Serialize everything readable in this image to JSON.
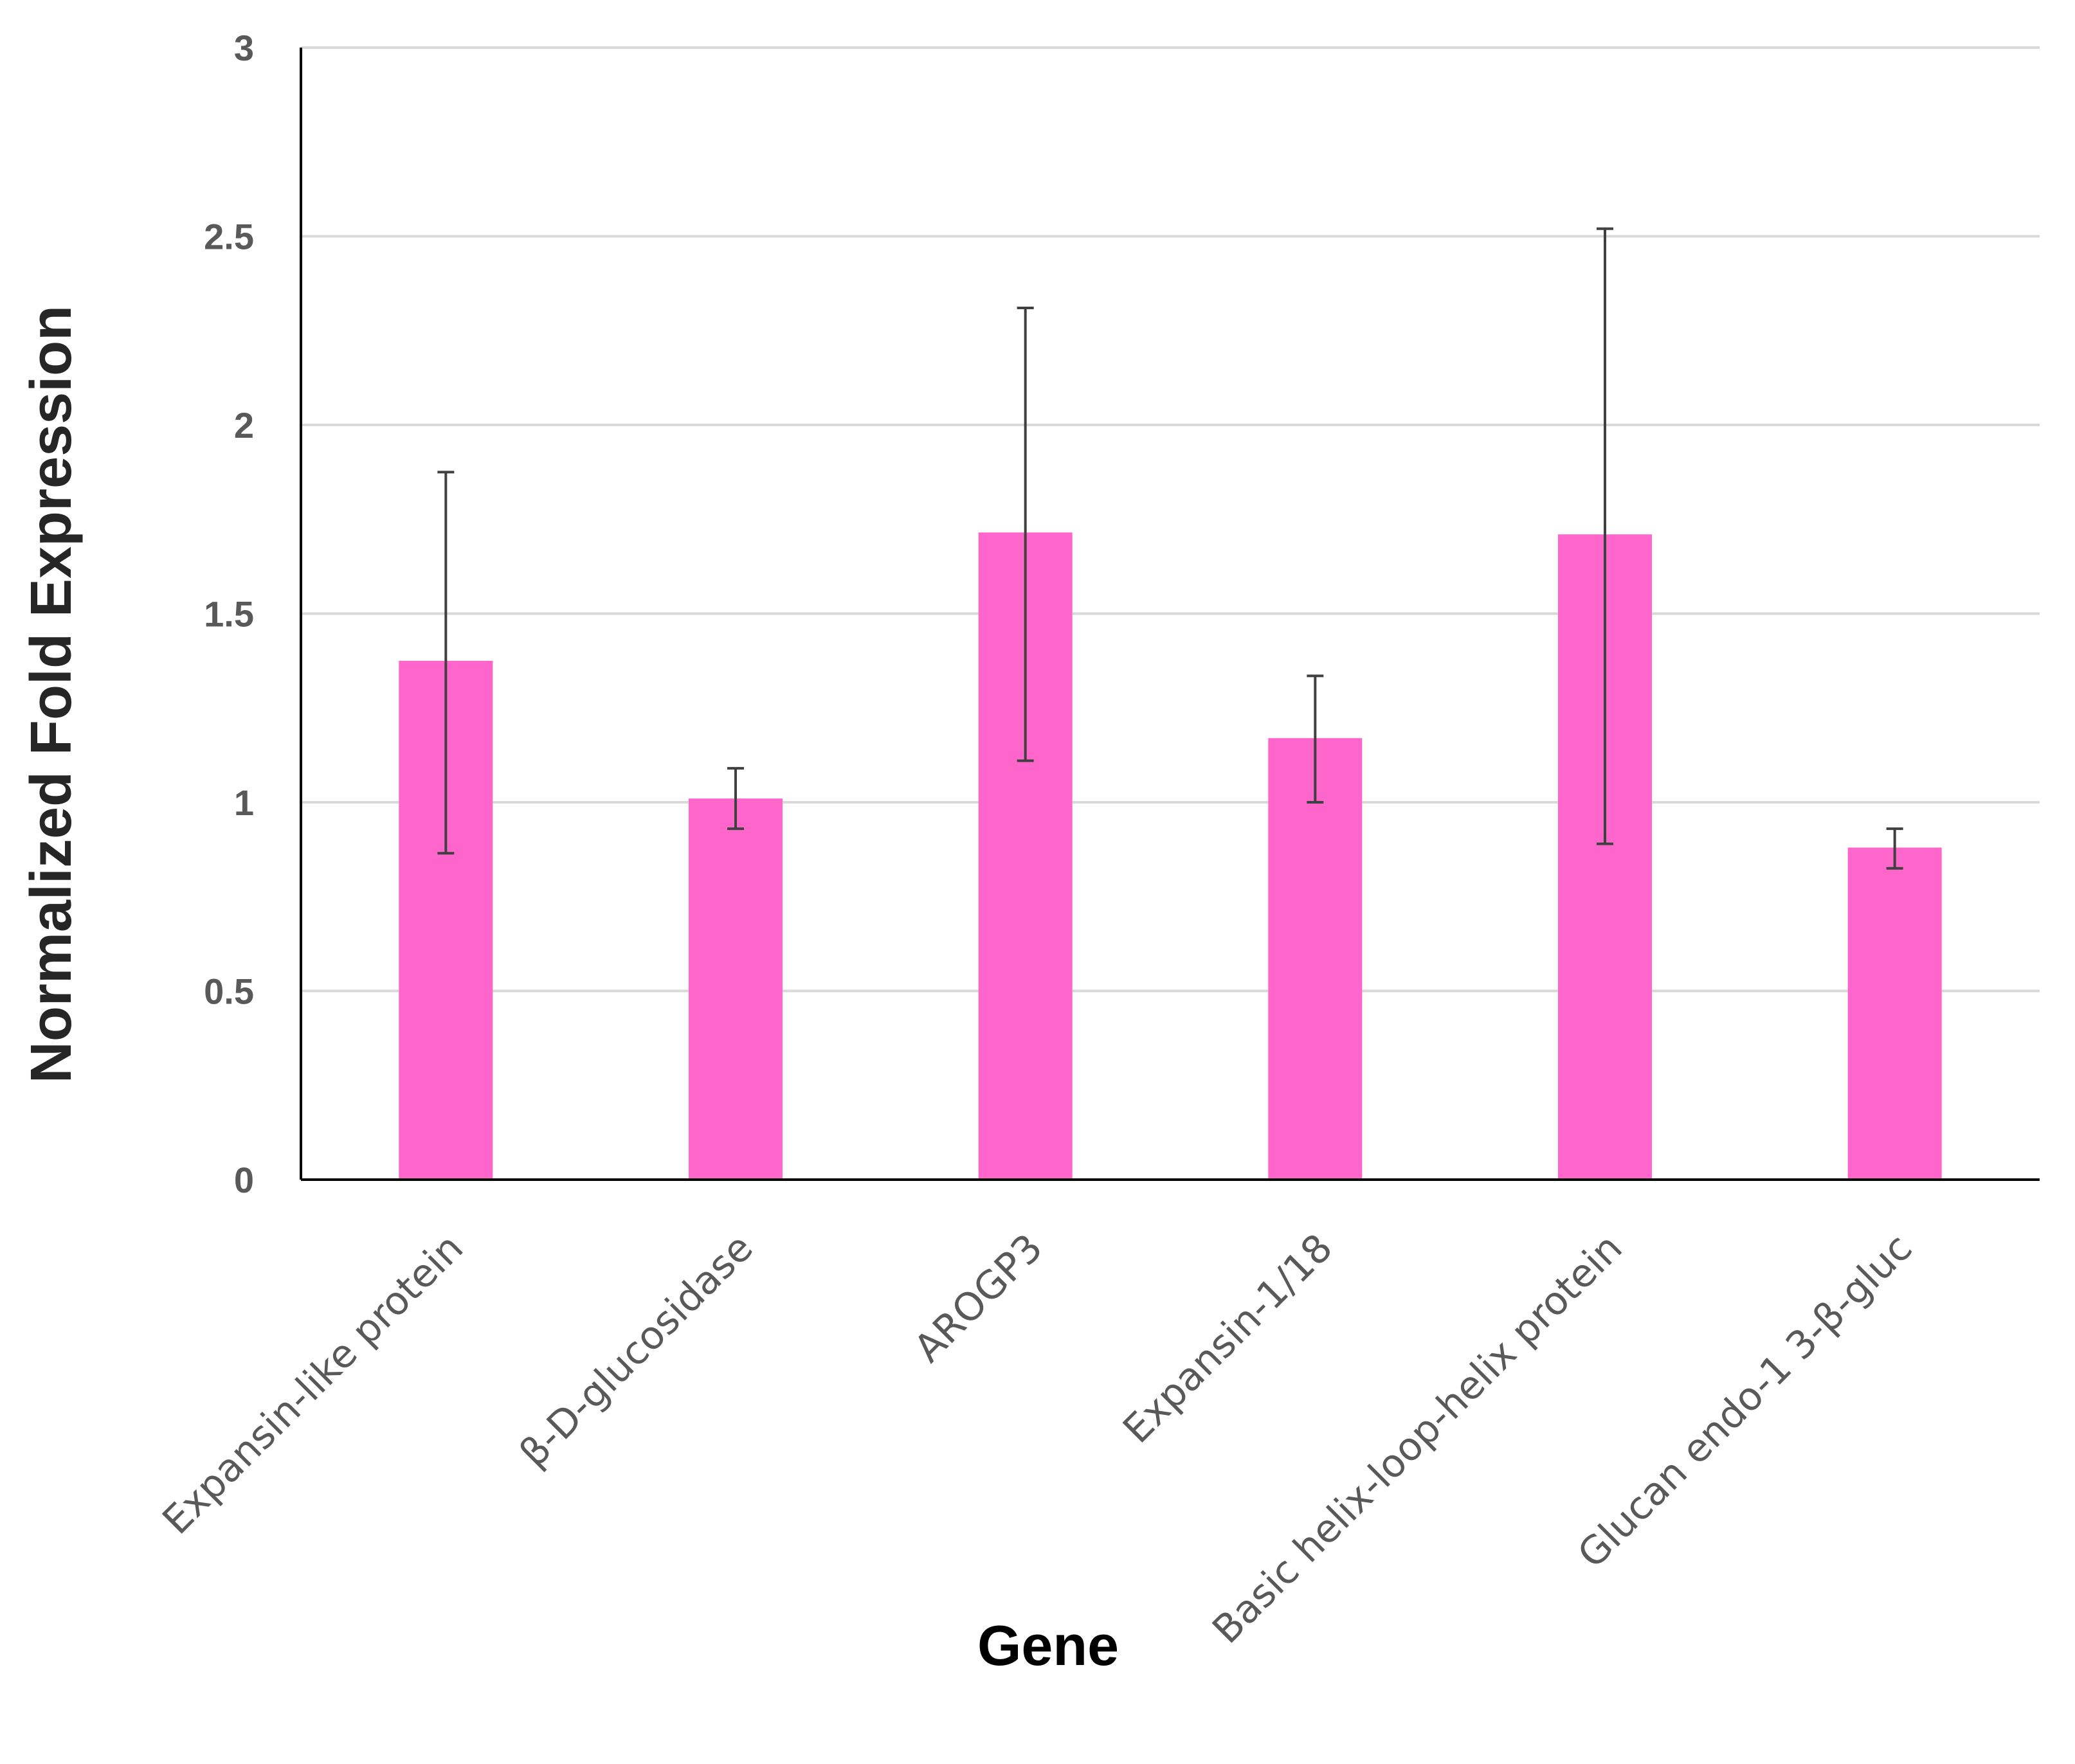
{
  "chart_data": {
    "type": "bar",
    "title": "",
    "xlabel": "Gene",
    "ylabel": "Normalized Fold Expression",
    "ylim": [
      0,
      3
    ],
    "yticks": [
      "0",
      "0.5",
      "1",
      "1.5",
      "2",
      "2.5",
      "3"
    ],
    "grid": true,
    "categories": [
      "Expansin-like protein",
      "β-D-glucosidase",
      "AROGP3",
      "Expansin-1/18",
      "Basic helix-loop-helix protein",
      "Glucan endo-1 3-β-gluc"
    ],
    "values": [
      1.375,
      1.01,
      1.715,
      1.17,
      1.71,
      0.88
    ],
    "error_upper": [
      1.875,
      1.09,
      2.31,
      1.335,
      2.52,
      0.93
    ],
    "error_lower": [
      0.865,
      0.93,
      1.11,
      1.0,
      0.89,
      0.825
    ],
    "bar_color": "#ff66cc",
    "gridline_color": "#d9d9d9"
  }
}
